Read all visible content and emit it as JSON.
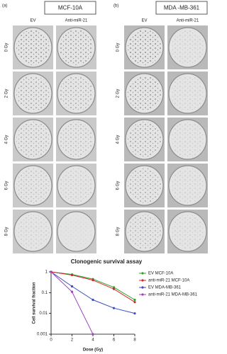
{
  "panels": [
    {
      "label": "(a)",
      "title": "MCF-10A",
      "columns": [
        "EV",
        "Anti-miR-21"
      ],
      "rows": [
        "0 Gy",
        "2 Gy",
        "4 Gy",
        "6 Gy",
        "8 Gy"
      ]
    },
    {
      "label": "(b)",
      "title": "MDA -MB-361",
      "columns": [
        "EV",
        "Anti-miR-21"
      ],
      "rows": [
        "0 Gy",
        "2 Gy",
        "4 Gy",
        "6 Gy",
        "8 Gy"
      ]
    }
  ],
  "chart_data": {
    "type": "line",
    "title": "Clonogenic survival assay",
    "xlabel": "Dose (Gy)",
    "ylabel": "Cell survival fraction",
    "x": [
      0,
      2,
      4,
      6,
      8
    ],
    "xlim": [
      0,
      8
    ],
    "xticks": [
      0,
      2,
      4,
      6,
      8
    ],
    "ylim": [
      0.001,
      1
    ],
    "yticks": [
      0.001,
      0.01,
      0.1,
      1
    ],
    "log_scale": true,
    "series": [
      {
        "name": "EV MCF-10A",
        "color": "#2ca02c",
        "values": [
          1,
          0.75,
          0.45,
          0.18,
          0.045
        ]
      },
      {
        "name": "anti-miR-21 MCF-10A",
        "color": "#d62728",
        "values": [
          1,
          0.7,
          0.4,
          0.15,
          0.035
        ]
      },
      {
        "name": "EV MDA-MB-361",
        "color": "#3b4cc0",
        "values": [
          1,
          0.2,
          0.045,
          0.018,
          0.01
        ]
      },
      {
        "name": "anti-miR-21 MDA-MB-361",
        "color": "#a040c0",
        "values": [
          1,
          0.11,
          0.001,
          null,
          null
        ]
      }
    ]
  }
}
